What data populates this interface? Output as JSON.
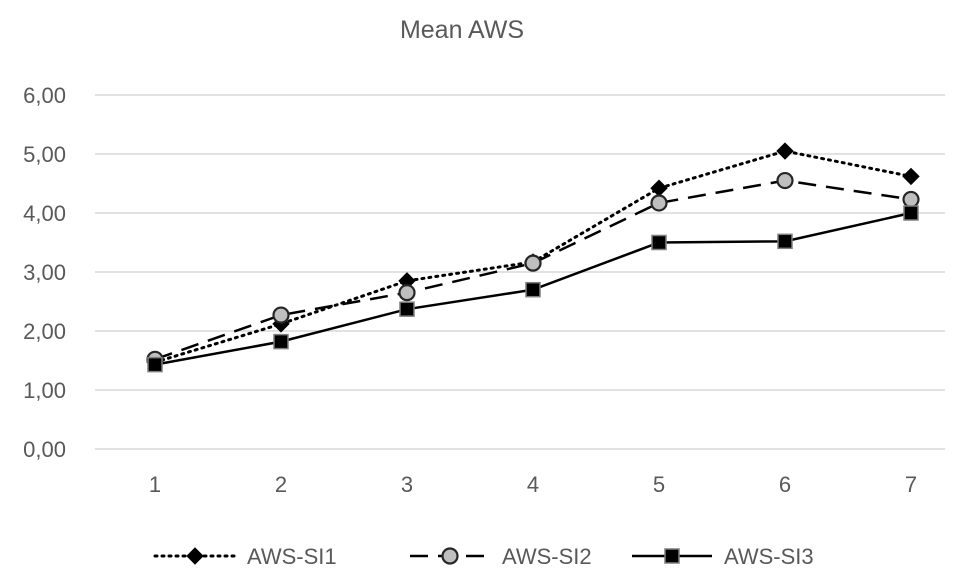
{
  "chart_data": {
    "type": "line",
    "title": "Mean AWS",
    "xlabel": "",
    "ylabel": "",
    "categories": [
      "1",
      "2",
      "3",
      "4",
      "5",
      "6",
      "7"
    ],
    "y_ticks": [
      "0,00",
      "1,00",
      "2,00",
      "3,00",
      "4,00",
      "5,00",
      "6,00"
    ],
    "ylim": [
      0,
      6
    ],
    "grid": true,
    "legend_position": "bottom",
    "series": [
      {
        "name": "AWS-SI1",
        "values": [
          1.47,
          2.12,
          2.85,
          3.17,
          4.42,
          5.05,
          4.62
        ],
        "line_style": "dotted",
        "marker": "diamond",
        "color": "#000000",
        "marker_fill": "#000000"
      },
      {
        "name": "AWS-SI2",
        "values": [
          1.52,
          2.27,
          2.65,
          3.15,
          4.17,
          4.55,
          4.23
        ],
        "line_style": "dashed",
        "marker": "circle",
        "color": "#000000",
        "marker_fill": "#bfbfbf"
      },
      {
        "name": "AWS-SI3",
        "values": [
          1.43,
          1.82,
          2.37,
          2.7,
          3.5,
          3.52,
          4.0
        ],
        "line_style": "solid",
        "marker": "square",
        "color": "#000000",
        "marker_fill": "#000000"
      }
    ],
    "colors": {
      "grid": "#d9d9d9",
      "text": "#595959"
    }
  }
}
